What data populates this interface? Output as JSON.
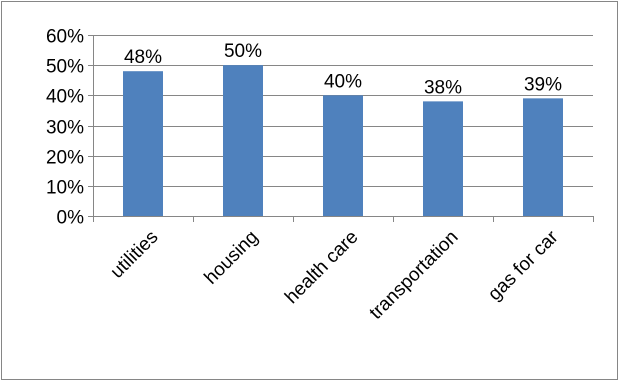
{
  "chart_data": {
    "type": "bar",
    "categories": [
      "utilities",
      "housing",
      "health care",
      "transportation",
      "gas for car"
    ],
    "values": [
      48,
      50,
      40,
      38,
      39
    ],
    "data_labels": [
      "48%",
      "50%",
      "40%",
      "38%",
      "39%"
    ],
    "ylim": [
      0,
      60
    ],
    "y_ticks": [
      0,
      10,
      20,
      30,
      40,
      50,
      60
    ],
    "y_tick_labels": [
      "0%",
      "10%",
      "20%",
      "30%",
      "40%",
      "50%",
      "60%"
    ],
    "grid": true,
    "legend": "none",
    "colors": {
      "bar": "#4F81BD",
      "bar_edge": "#3B6AA0",
      "grid": "#868686",
      "axis": "#868686",
      "border": "#868686",
      "text": "#000000"
    }
  }
}
